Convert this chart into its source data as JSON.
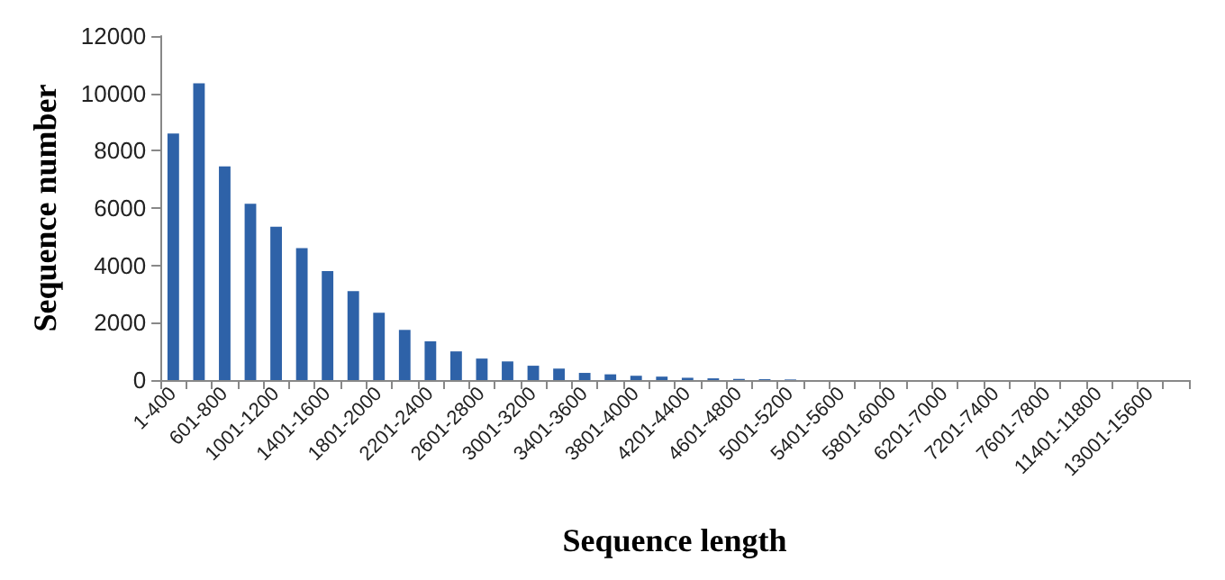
{
  "chart_data": {
    "type": "bar",
    "xlabel": "Sequence length",
    "ylabel": "Sequence number",
    "categories": [
      "1-400",
      null,
      "601-800",
      null,
      "1001-1200",
      null,
      "1401-1600",
      null,
      "1801-2000",
      null,
      "2201-2400",
      null,
      "2601-2800",
      null,
      "3001-3200",
      null,
      "3401-3600",
      null,
      "3801-4000",
      null,
      "4201-4400",
      null,
      "4601-4800",
      null,
      "5001-5200",
      null,
      "5401-5600",
      null,
      "5801-6000",
      null,
      "6201-7000",
      null,
      "7201-7400",
      null,
      "7601-7800",
      null,
      "11401-11800",
      null,
      "13001-15600",
      null
    ],
    "values": [
      8600,
      10350,
      7450,
      6150,
      5350,
      4600,
      3800,
      3100,
      2350,
      1750,
      1350,
      1000,
      750,
      650,
      500,
      400,
      250,
      200,
      150,
      120,
      80,
      60,
      40,
      30,
      20,
      null,
      null,
      null,
      null,
      null,
      0,
      0,
      0,
      0,
      0,
      0,
      0,
      0,
      0,
      0
    ],
    "color": "#2e62a8",
    "ylim": [
      0,
      12000
    ],
    "yticks": [
      0,
      2000,
      4000,
      6000,
      8000,
      10000,
      12000
    ],
    "grid": false
  }
}
